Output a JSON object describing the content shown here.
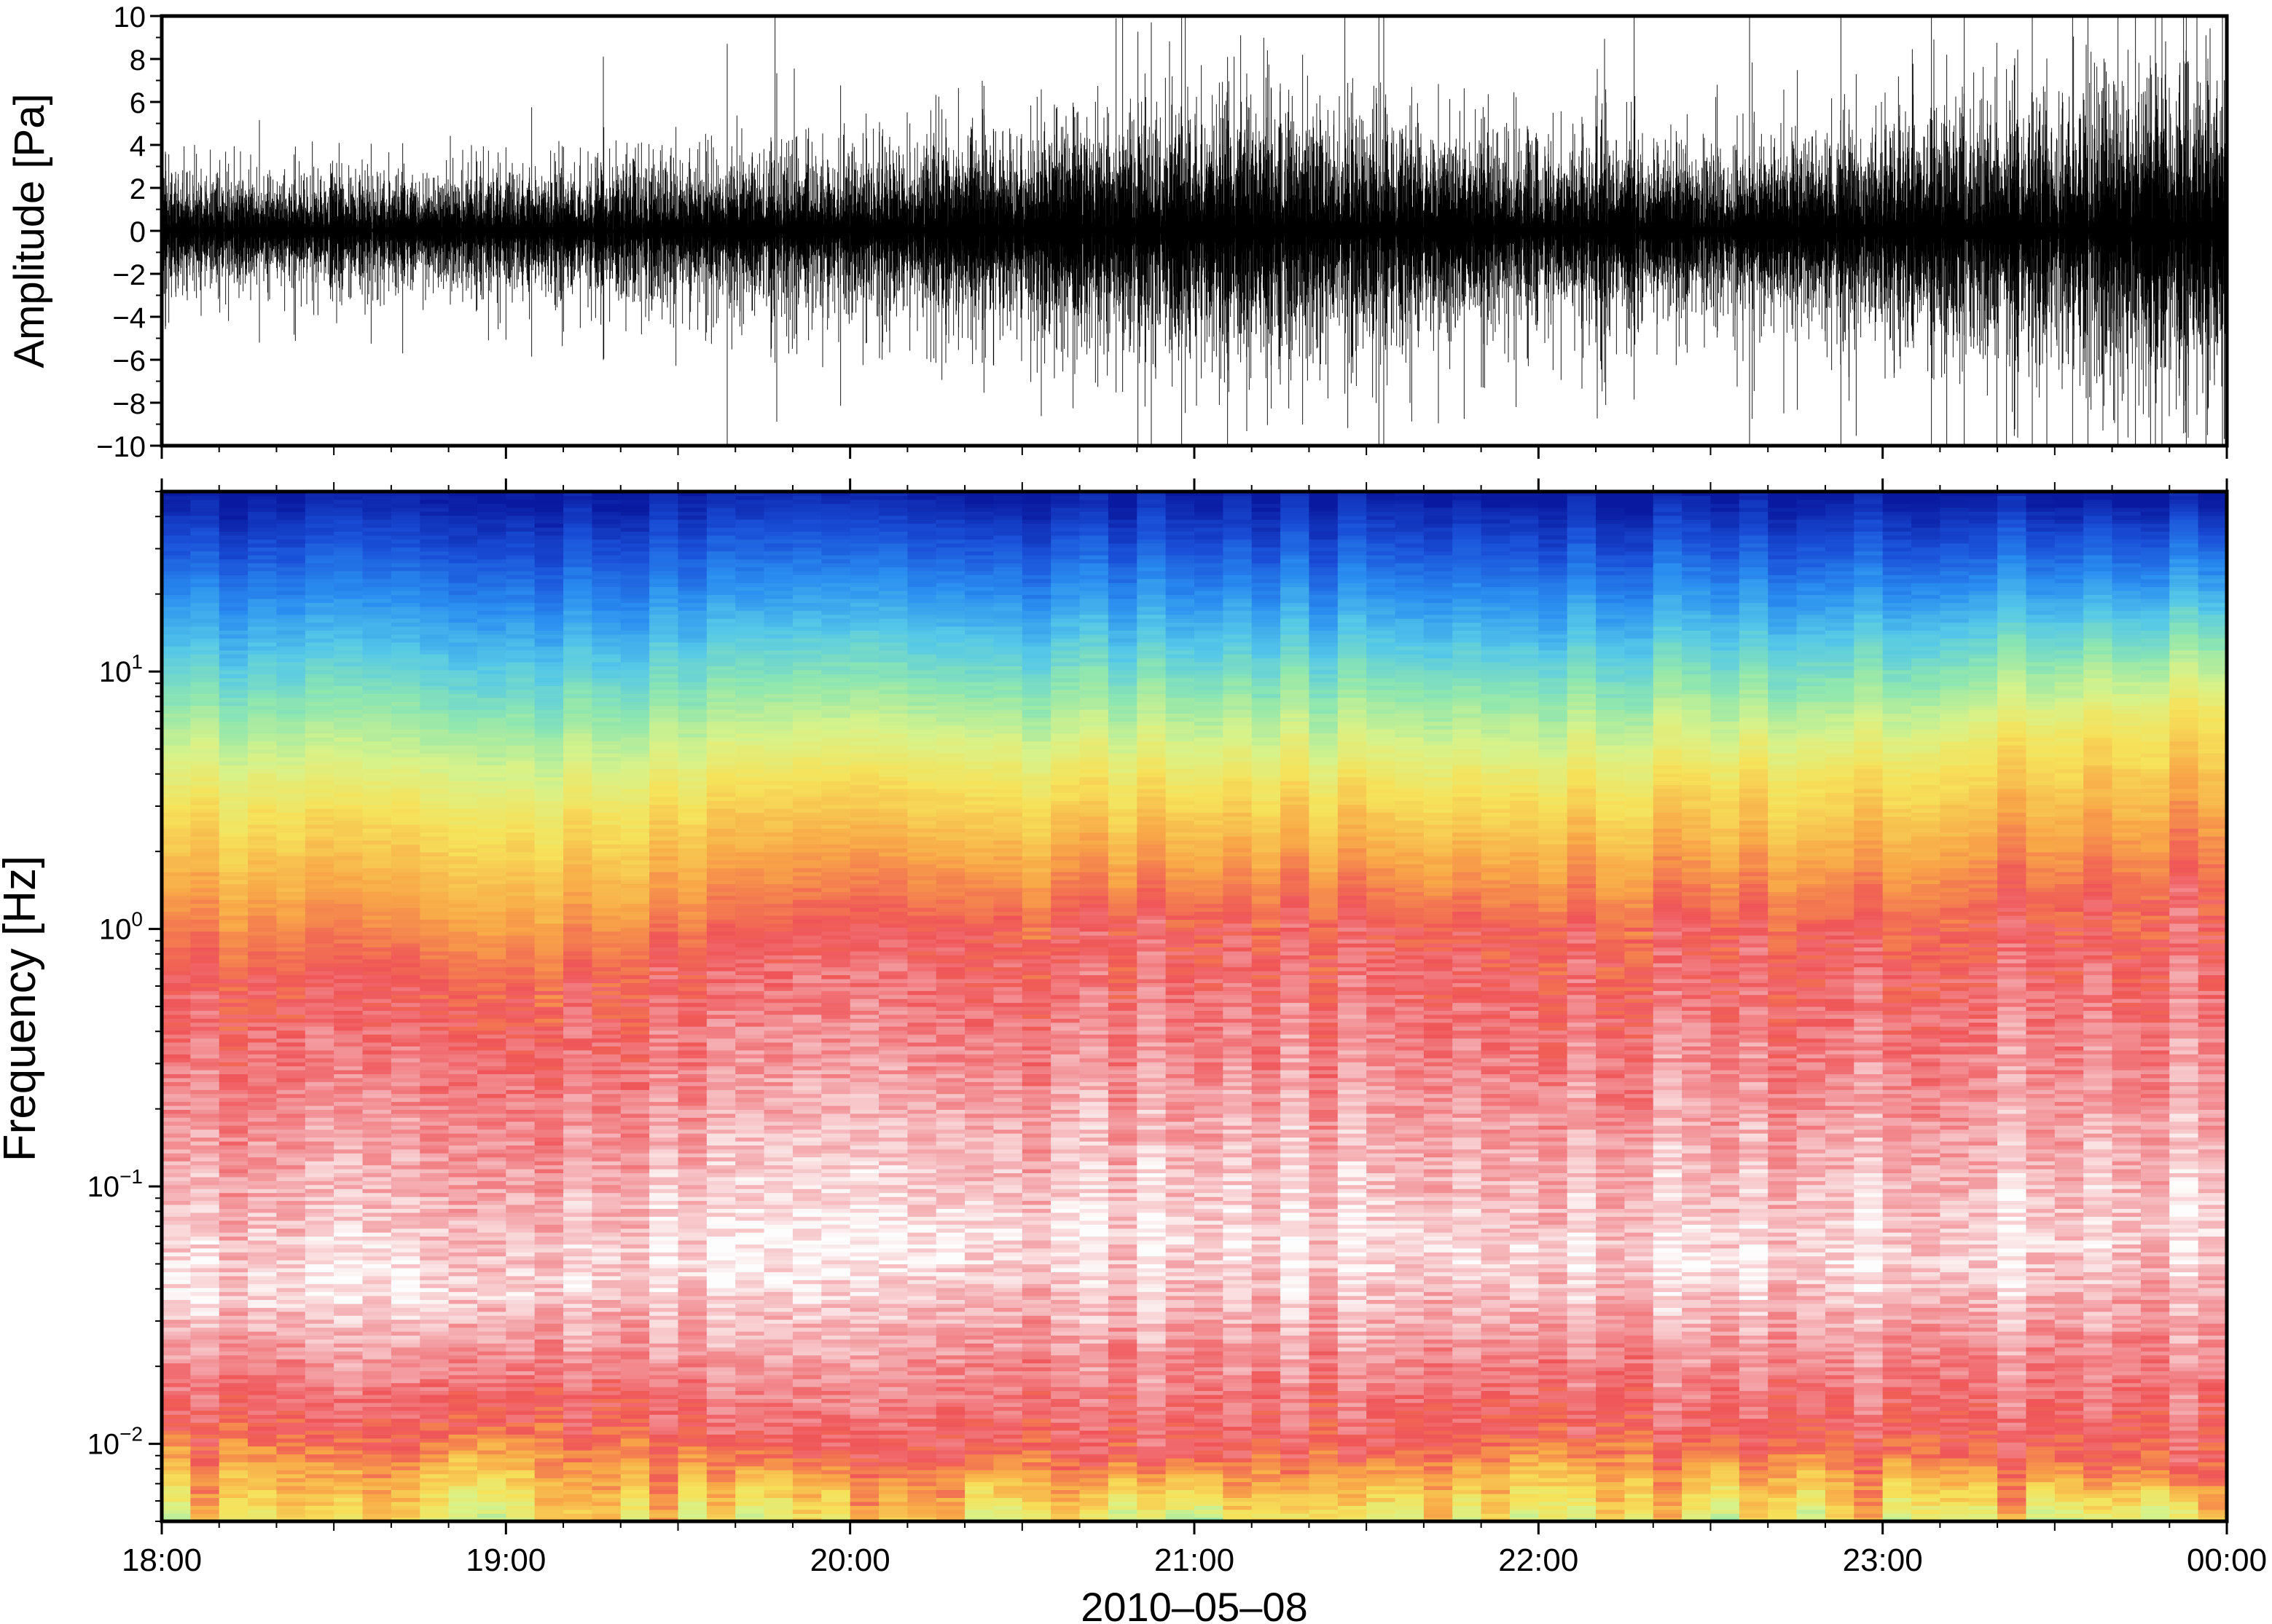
{
  "chart_data": [
    {
      "type": "line",
      "series": [
        {
          "values": []
        }
      ],
      "ylabel": "Amplitude [Pa]",
      "xlabel": "",
      "ylim": [
        -10,
        10
      ],
      "yticks": [
        -10,
        -8,
        -6,
        -4,
        -2,
        0,
        2,
        4,
        6,
        8,
        10
      ],
      "ytick_labels": [
        "−10",
        "−8",
        "−6",
        "−4",
        "−2",
        "0",
        "2",
        "4",
        "6",
        "8",
        "10"
      ],
      "xlim": [
        "18:00",
        "00:00"
      ],
      "grid": false,
      "envelope_amplitude_pa": {
        "time": [
          "18:00",
          "18:30",
          "19:00",
          "19:30",
          "20:00",
          "20:30",
          "21:00",
          "21:30",
          "22:00",
          "22:30",
          "23:00",
          "23:30",
          "00:00"
        ],
        "typical": [
          2.5,
          2.5,
          2.5,
          3.0,
          3.5,
          4.5,
          5.5,
          5.0,
          4.0,
          3.5,
          4.5,
          6.0,
          7.0
        ],
        "peak": [
          6,
          6,
          5,
          7,
          8,
          10,
          10,
          10,
          8,
          8,
          10,
          10,
          10
        ]
      }
    },
    {
      "type": "heatmap",
      "ylabel": "Frequency [Hz]",
      "xlabel": "2010–05–08",
      "y_scale": "log",
      "ylim": [
        0.005,
        50
      ],
      "yticks": [
        0.01,
        0.1,
        1,
        10
      ],
      "ytick_labels": [
        {
          "base": "10",
          "exp": "−2"
        },
        {
          "base": "10",
          "exp": "−1"
        },
        {
          "base": "10",
          "exp": "0"
        },
        {
          "base": "10",
          "exp": "1"
        }
      ],
      "xlim": [
        "18:00",
        "00:00"
      ],
      "xtick_labels": [
        "18:00",
        "19:00",
        "20:00",
        "21:00",
        "22:00",
        "23:00",
        "00:00"
      ],
      "colormap": [
        "#fdfdfd",
        "#f3a3a8",
        "#ef5558",
        "#f8a848",
        "#f6e25a",
        "#d7f28a",
        "#8ee6b0",
        "#55c8e8",
        "#2a8ef0",
        "#1a4fd8",
        "#0a1aa0"
      ],
      "band_profile": {
        "time_hours": [
          0,
          1,
          2,
          3,
          4,
          5,
          6
        ],
        "yellow_to_blue_transition_hz": [
          3.0,
          2.6,
          3.5,
          3.5,
          3.5,
          4.0,
          7.0
        ],
        "orange_to_red_transition_hz": [
          0.7,
          0.55,
          0.9,
          1.1,
          1.0,
          1.0,
          1.5
        ],
        "whitest_band_hz": [
          0.04,
          0.04,
          0.06,
          0.06,
          0.05,
          0.05,
          0.07
        ],
        "low_freq_yellow_below_hz": [
          0.012,
          0.012,
          0.01,
          0.009,
          0.011,
          0.01,
          0.008
        ]
      }
    }
  ]
}
